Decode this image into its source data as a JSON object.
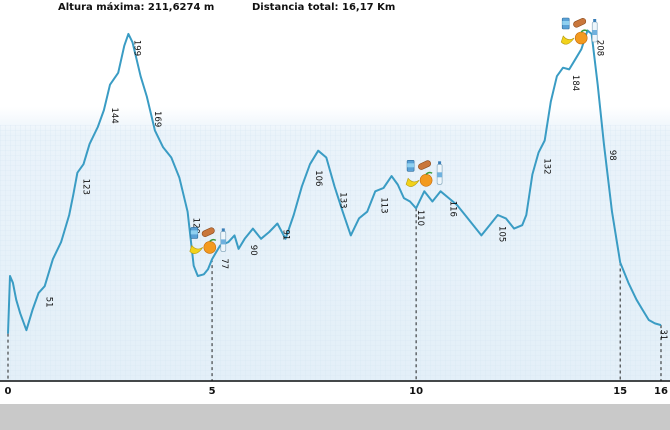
{
  "header": {
    "max_altitude": "Altura máxima: 211,6274 m",
    "total_distance": "Distancia total: 16,17 Km"
  },
  "colors": {
    "line": "#3a9cc4",
    "grid": "#dcebf5",
    "background_top": "#ffffff",
    "background_bottom": "#e6f1f9"
  },
  "icons": [
    "drink-can-icon",
    "bread-icon",
    "banana-icon",
    "orange-icon",
    "water-bottle-icon"
  ],
  "chart_data": {
    "type": "line",
    "xlim": [
      0,
      16
    ],
    "ylim": [
      0,
      212
    ],
    "x_ticks": [
      "0",
      "5",
      "10",
      "15",
      "16"
    ],
    "profile": [
      [
        0.0,
        28
      ],
      [
        0.05,
        62
      ],
      [
        0.12,
        58
      ],
      [
        0.2,
        48
      ],
      [
        0.3,
        40
      ],
      [
        0.45,
        30
      ],
      [
        0.6,
        42
      ],
      [
        0.75,
        52
      ],
      [
        0.9,
        56
      ],
      [
        1.1,
        72
      ],
      [
        1.3,
        82
      ],
      [
        1.5,
        98
      ],
      [
        1.6,
        110
      ],
      [
        1.7,
        123
      ],
      [
        1.85,
        128
      ],
      [
        2.0,
        140
      ],
      [
        2.2,
        150
      ],
      [
        2.35,
        160
      ],
      [
        2.5,
        175
      ],
      [
        2.7,
        182
      ],
      [
        2.85,
        198
      ],
      [
        2.95,
        205
      ],
      [
        3.05,
        200
      ],
      [
        3.15,
        190
      ],
      [
        3.25,
        180
      ],
      [
        3.4,
        168
      ],
      [
        3.6,
        148
      ],
      [
        3.8,
        138
      ],
      [
        4.0,
        132
      ],
      [
        4.2,
        120
      ],
      [
        4.4,
        100
      ],
      [
        4.55,
        68
      ],
      [
        4.65,
        62
      ],
      [
        4.8,
        63
      ],
      [
        4.9,
        66
      ],
      [
        5.0,
        72
      ],
      [
        5.1,
        76
      ],
      [
        5.2,
        80
      ],
      [
        5.4,
        82
      ],
      [
        5.55,
        86
      ],
      [
        5.65,
        78
      ],
      [
        5.8,
        84
      ],
      [
        6.0,
        90
      ],
      [
        6.2,
        84
      ],
      [
        6.4,
        88
      ],
      [
        6.6,
        93
      ],
      [
        6.8,
        84
      ],
      [
        7.0,
        98
      ],
      [
        7.2,
        115
      ],
      [
        7.4,
        128
      ],
      [
        7.6,
        136
      ],
      [
        7.8,
        132
      ],
      [
        8.0,
        115
      ],
      [
        8.2,
        100
      ],
      [
        8.4,
        86
      ],
      [
        8.6,
        96
      ],
      [
        8.8,
        100
      ],
      [
        9.0,
        112
      ],
      [
        9.2,
        114
      ],
      [
        9.4,
        121
      ],
      [
        9.55,
        116
      ],
      [
        9.7,
        108
      ],
      [
        9.85,
        106
      ],
      [
        10.0,
        102
      ],
      [
        10.2,
        112
      ],
      [
        10.4,
        106
      ],
      [
        10.6,
        112
      ],
      [
        10.8,
        108
      ],
      [
        11.0,
        104
      ],
      [
        11.2,
        98
      ],
      [
        11.4,
        92
      ],
      [
        11.6,
        86
      ],
      [
        11.8,
        92
      ],
      [
        12.0,
        98
      ],
      [
        12.2,
        96
      ],
      [
        12.4,
        90
      ],
      [
        12.6,
        92
      ],
      [
        12.7,
        98
      ],
      [
        12.85,
        122
      ],
      [
        13.0,
        135
      ],
      [
        13.15,
        142
      ],
      [
        13.3,
        165
      ],
      [
        13.45,
        180
      ],
      [
        13.6,
        185
      ],
      [
        13.75,
        184
      ],
      [
        13.9,
        190
      ],
      [
        14.05,
        196
      ],
      [
        14.2,
        207
      ],
      [
        14.3,
        205
      ],
      [
        14.45,
        175
      ],
      [
        14.6,
        140
      ],
      [
        14.8,
        100
      ],
      [
        15.0,
        70
      ],
      [
        15.2,
        58
      ],
      [
        15.4,
        48
      ],
      [
        15.55,
        42
      ],
      [
        15.7,
        36
      ],
      [
        15.85,
        34
      ],
      [
        16.0,
        33
      ]
    ],
    "labels": [
      {
        "x": 0.8,
        "text": "51"
      },
      {
        "x": 1.7,
        "text": "123"
      },
      {
        "x": 2.4,
        "text": "144"
      },
      {
        "x": 2.95,
        "text": "199"
      },
      {
        "x": 3.45,
        "text": "169"
      },
      {
        "x": 4.4,
        "text": "120"
      },
      {
        "x": 5.1,
        "text": "77"
      },
      {
        "x": 5.8,
        "text": "90"
      },
      {
        "x": 6.6,
        "text": "91"
      },
      {
        "x": 7.4,
        "text": "106"
      },
      {
        "x": 8.0,
        "text": "133"
      },
      {
        "x": 9.0,
        "text": "113"
      },
      {
        "x": 9.9,
        "text": "110"
      },
      {
        "x": 10.7,
        "text": "116"
      },
      {
        "x": 11.9,
        "text": "105"
      },
      {
        "x": 13.0,
        "text": "132"
      },
      {
        "x": 13.7,
        "text": "184"
      },
      {
        "x": 14.3,
        "text": "208"
      },
      {
        "x": 14.6,
        "text": "98"
      },
      {
        "x": 15.85,
        "text": "31"
      }
    ],
    "markers": [
      0,
      5,
      10,
      15,
      16
    ],
    "supply_points": [
      4.7,
      10.0,
      13.8
    ]
  }
}
